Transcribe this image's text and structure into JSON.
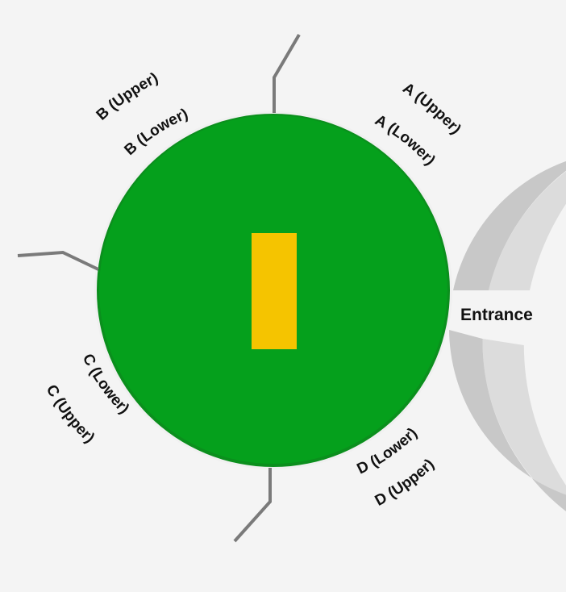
{
  "diagram": {
    "colors": {
      "background": "#f4f4f4",
      "upper_tier": "#dcdcdc",
      "lower_tier": "#c8c8c8",
      "field": "#05a01c",
      "field_rim": "#0b8f1d",
      "pitch": "#f5c400",
      "divider": "#7a7a7a",
      "label": "#111111"
    },
    "entrance": {
      "label": "Entrance"
    },
    "stands": [
      {
        "id": "a-upper",
        "label": "A (Upper)"
      },
      {
        "id": "a-lower",
        "label": "A (Lower)"
      },
      {
        "id": "b-upper",
        "label": "B (Upper)"
      },
      {
        "id": "b-lower",
        "label": "B (Lower)"
      },
      {
        "id": "c-upper",
        "label": "C (Upper)"
      },
      {
        "id": "c-lower",
        "label": "C (Lower)"
      },
      {
        "id": "d-upper",
        "label": "D (Upper)"
      },
      {
        "id": "d-lower",
        "label": "D (Lower)"
      }
    ]
  }
}
